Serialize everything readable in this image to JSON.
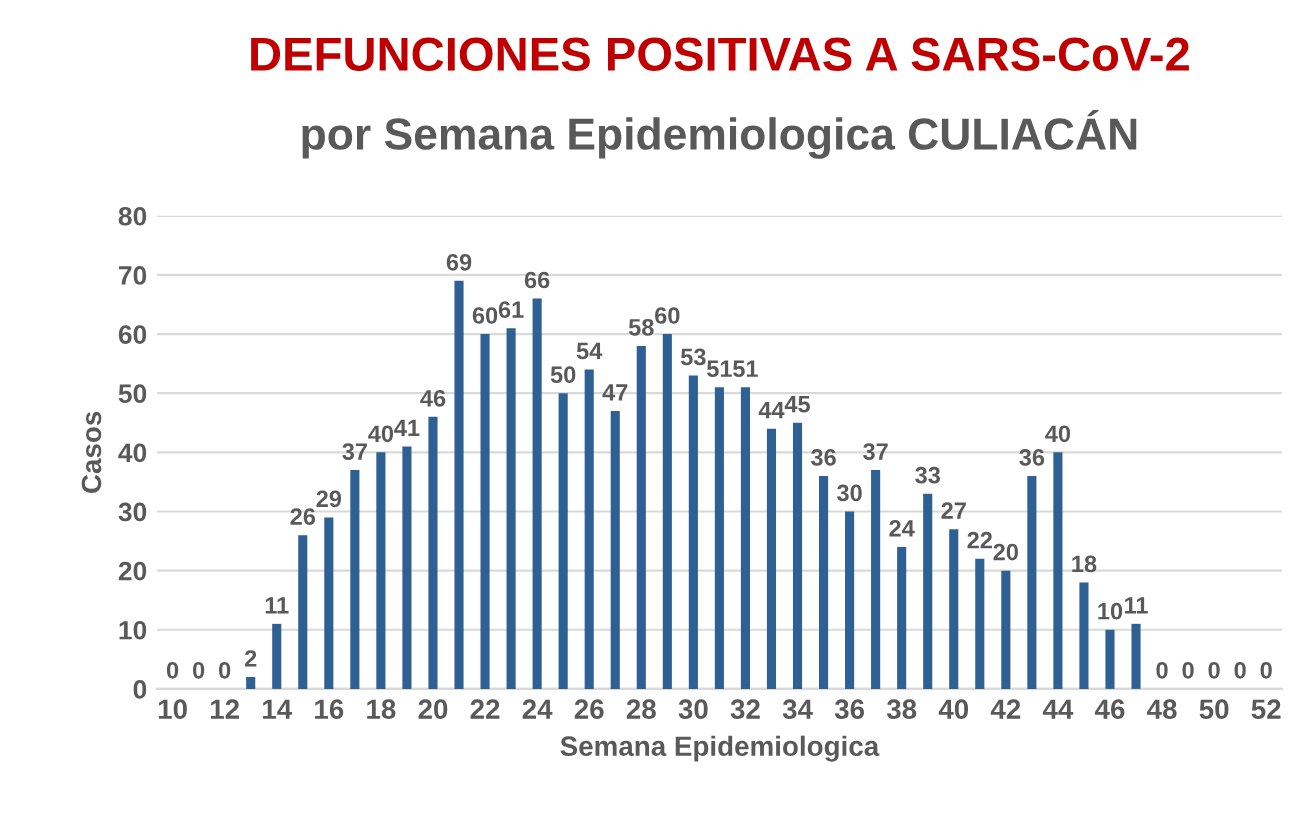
{
  "chart_data": {
    "type": "bar",
    "title": "DEFUNCIONES POSITIVAS A SARS-CoV-2",
    "subtitle": "por Semana Epidemiologica CULIACÁN",
    "xlabel": "Semana Epidemiologica",
    "ylabel": "Casos",
    "categories": [
      "10",
      null,
      "12",
      null,
      "14",
      null,
      "16",
      null,
      "18",
      null,
      "20",
      null,
      "22",
      null,
      "24",
      null,
      "26",
      null,
      "28",
      null,
      "30",
      null,
      "32",
      null,
      "34",
      null,
      "36",
      null,
      "38",
      null,
      "40",
      null,
      "42",
      null,
      "44",
      null,
      "46",
      null,
      "48",
      null,
      "50",
      null,
      "52"
    ],
    "values": [
      0,
      0,
      0,
      2,
      11,
      26,
      29,
      37,
      40,
      41,
      46,
      69,
      60,
      61,
      66,
      50,
      54,
      47,
      58,
      60,
      53,
      51,
      51,
      44,
      45,
      36,
      30,
      37,
      24,
      33,
      27,
      22,
      20,
      36,
      40,
      18,
      10,
      11,
      0,
      0,
      0,
      0,
      0
    ],
    "color": "#2e6094",
    "ylim": [
      0,
      80
    ],
    "yticks": [
      0,
      10,
      20,
      30,
      40,
      50,
      60,
      70,
      80
    ],
    "grid": "y",
    "data_labels": true
  }
}
